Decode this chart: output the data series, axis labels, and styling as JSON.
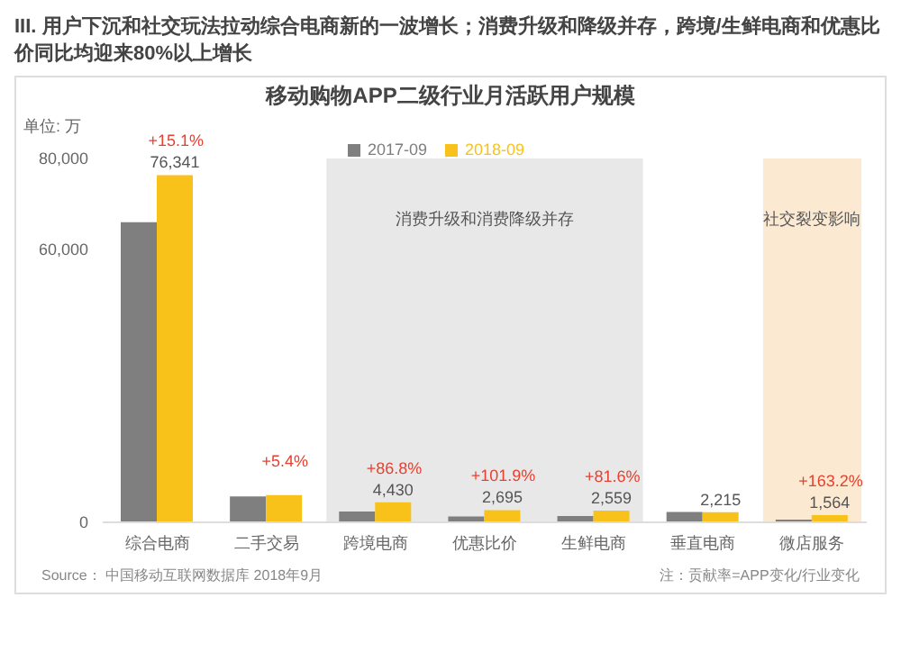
{
  "chart_data": {
    "type": "bar",
    "subtitle": "III. 用户下沉和社交玩法拉动综合电商新的一波增长；消费升级和降级并存，跨境/生鲜电商和优惠比价同比均迎来80%以上增长",
    "title": "移动购物APP二级行业月活跃用户规模",
    "ylabel": "单位: 万",
    "categories": [
      "综合电商",
      "二手交易",
      "跨境电商",
      "优惠比价",
      "生鲜电商",
      "垂直电商",
      "微店服务"
    ],
    "series": [
      {
        "name": "2017-09",
        "color": "#7f7f7f",
        "values": [
          66000,
          5700,
          2400,
          1300,
          1400,
          2300,
          600
        ]
      },
      {
        "name": "2018-09",
        "color": "#f9c21a",
        "values": [
          76341,
          6000,
          4430,
          2695,
          2559,
          2215,
          1564
        ],
        "value_labels": [
          "76,341",
          null,
          "4,430",
          "2,695",
          "2,559",
          "2,215",
          "1,564"
        ]
      }
    ],
    "ylim": [
      0,
      80000
    ],
    "yticks": [
      0,
      {
        "value": 60000,
        "label": "60,000"
      },
      {
        "value": 80000,
        "label": "80,000"
      }
    ],
    "legend": "top",
    "bands": [
      {
        "axis": "x",
        "from": "跨境电商",
        "to": "生鲜电商",
        "label": "消费升级和消费降级并存",
        "color": "#e8e8e8"
      },
      {
        "axis": "x",
        "from": "微店服务",
        "to": "微店服务",
        "label": "社交裂变影响",
        "color": "#fce9d2"
      }
    ],
    "annotations": [
      {
        "text": "+15.1%",
        "x": "综合电商",
        "y": 76341
      },
      {
        "text": "+5.4%",
        "x": "二手交易",
        "y": 6000
      },
      {
        "text": "+86.8%",
        "x": "跨境电商",
        "y": 4430
      },
      {
        "text": "+101.9%",
        "x": "优惠比价",
        "y": 2695
      },
      {
        "text": "+81.6%",
        "x": "生鲜电商",
        "y": 2559
      },
      {
        "text": "+163.2%",
        "x": "微店服务",
        "y": 1564
      },
      "Source： 中国移动互联网数据库 2018年9月",
      "注：贡献率=APP变化/行业变化"
    ]
  }
}
